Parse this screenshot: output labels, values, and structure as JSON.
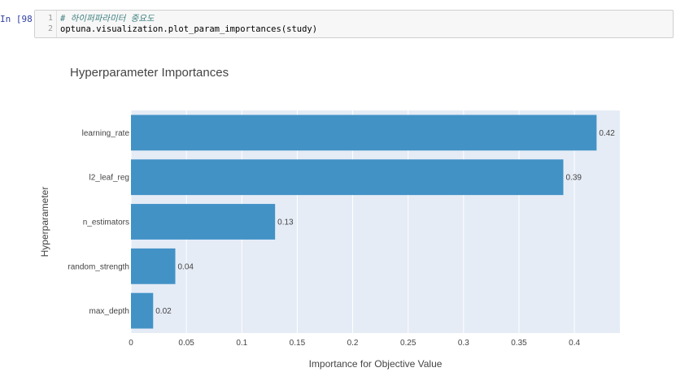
{
  "cell": {
    "prompt": "In [98]:",
    "lines": [
      {
        "number": "1",
        "text": "# 하이퍼파라미터 중요도",
        "kind": "comment"
      },
      {
        "number": "2",
        "text": "optuna.visualization.plot_param_importances(study)",
        "kind": "code"
      }
    ]
  },
  "chart_data": {
    "type": "bar",
    "orientation": "horizontal",
    "title": "Hyperparameter Importances",
    "xlabel": "Importance for Objective Value",
    "ylabel": "Hyperparameter",
    "categories": [
      "learning_rate",
      "l2_leaf_reg",
      "n_estimators",
      "random_strength",
      "max_depth"
    ],
    "values": [
      0.42,
      0.39,
      0.13,
      0.04,
      0.02
    ],
    "data_labels": [
      "0.42",
      "0.39",
      "0.13",
      "0.04",
      "0.02"
    ],
    "xticks": [
      0,
      0.05,
      0.1,
      0.15,
      0.2,
      0.25,
      0.3,
      0.35,
      0.4
    ],
    "xtick_labels": [
      "0",
      "0.05",
      "0.1",
      "0.15",
      "0.2",
      "0.25",
      "0.3",
      "0.35",
      "0.4"
    ],
    "xlim": [
      0,
      0.441
    ],
    "grid": true,
    "legend": "none",
    "bar_color": "#4292c6",
    "plot_background": "#e5ecf6"
  }
}
